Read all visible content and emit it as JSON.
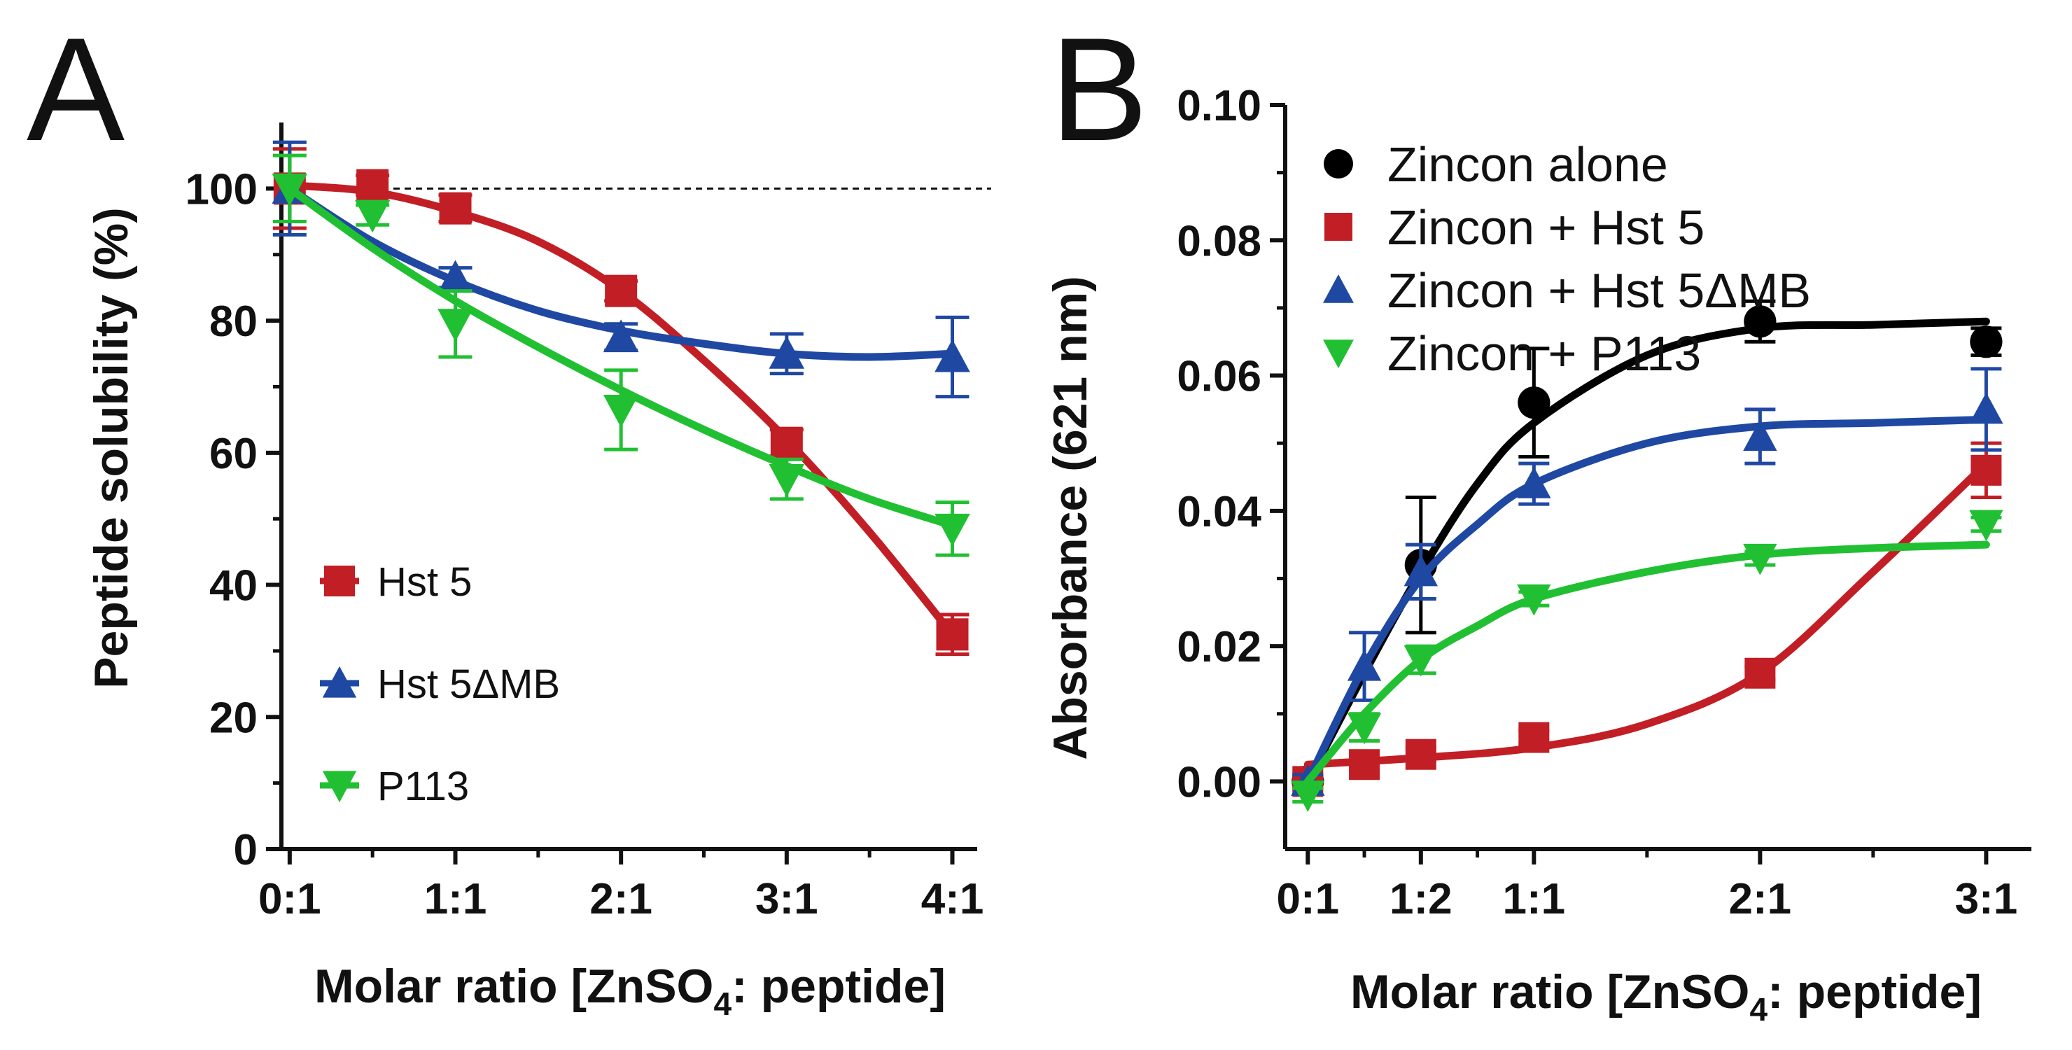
{
  "chart_data": [
    {
      "panel": "A",
      "type": "line",
      "xlabel_main": "Molar ratio [ZnSO",
      "xlabel_sub": "4",
      "xlabel_end": ": peptide]",
      "ylabel": "Peptide solubility (%)",
      "ylim": [
        0,
        110
      ],
      "xlim": [
        -0.05,
        4.15
      ],
      "yticks": [
        "0",
        "20",
        "40",
        "60",
        "80",
        "100"
      ],
      "xticks": [
        {
          "x": 0,
          "label": "0:1"
        },
        {
          "x": 1,
          "label": "1:1"
        },
        {
          "x": 2,
          "label": "2:1"
        },
        {
          "x": 3,
          "label": "3:1"
        },
        {
          "x": 4,
          "label": "4:1"
        }
      ],
      "reference_line": 100,
      "legend_position": "bottom-left",
      "series": [
        {
          "name": "Hst 5",
          "marker": "square",
          "color": "#c21e25",
          "x": [
            0,
            0.5,
            1,
            2,
            3,
            4
          ],
          "y": [
            100,
            100.5,
            97,
            84.5,
            61.5,
            32.5
          ],
          "err": [
            6,
            1.5,
            2,
            1.5,
            2,
            3
          ],
          "fit_x": [
            0,
            0.5,
            1,
            1.5,
            2,
            2.5,
            3,
            3.5,
            4
          ],
          "fit_y": [
            100.5,
            99.5,
            96.5,
            92,
            84.5,
            74,
            62,
            48,
            32.5
          ]
        },
        {
          "name": "Hst 5ΔMB",
          "marker": "triangle-up",
          "color": "#1f48a2",
          "x": [
            0,
            1,
            2,
            3,
            4
          ],
          "y": [
            100,
            86.5,
            77.5,
            75,
            74.5
          ],
          "err": [
            7,
            1.5,
            2,
            3,
            6
          ],
          "fit_x": [
            0,
            0.5,
            1,
            1.5,
            2,
            2.5,
            3,
            3.5,
            4
          ],
          "fit_y": [
            100,
            92,
            86,
            81.5,
            78.5,
            76.5,
            75,
            74.5,
            75
          ]
        },
        {
          "name": "P113",
          "marker": "triangle-down",
          "color": "#21c032",
          "x": [
            0,
            0.5,
            1,
            2,
            3,
            4
          ],
          "y": [
            100,
            96,
            79.5,
            66.5,
            56,
            48.5
          ],
          "err": [
            5,
            1.5,
            5,
            6,
            3,
            4
          ],
          "fit_x": [
            0,
            0.5,
            1,
            1.5,
            2,
            2.5,
            3,
            3.5,
            4
          ],
          "fit_y": [
            100,
            91,
            83,
            76,
            69.5,
            63.5,
            58,
            53,
            49
          ]
        }
      ]
    },
    {
      "panel": "B",
      "type": "line",
      "xlabel_main": "Molar ratio [ZnSO",
      "xlabel_sub": "4",
      "xlabel_end": ": peptide]",
      "ylabel": "Absorbance (621 nm)",
      "ylim": [
        -0.01,
        0.1
      ],
      "xlim": [
        -0.1,
        3.2
      ],
      "yticks": [
        "0.00",
        "0.02",
        "0.04",
        "0.06",
        "0.08",
        "0.10"
      ],
      "ytick_values": [
        0,
        0.02,
        0.04,
        0.06,
        0.08,
        0.1
      ],
      "xticks": [
        {
          "x": 0,
          "label": "0:1"
        },
        {
          "x": 0.5,
          "label": "1:2"
        },
        {
          "x": 1,
          "label": "1:1"
        },
        {
          "x": 2,
          "label": "2:1"
        },
        {
          "x": 3,
          "label": "3:1"
        }
      ],
      "legend_position": "top-left",
      "series": [
        {
          "name": "Zincon alone",
          "marker": "circle",
          "color": "#000000",
          "x": [
            0,
            0.5,
            1,
            2,
            3
          ],
          "y": [
            0,
            0.032,
            0.056,
            0.068,
            0.065
          ],
          "err": [
            0.001,
            0.01,
            0.008,
            0.003,
            0.002
          ],
          "fit_x": [
            0,
            0.25,
            0.5,
            0.75,
            1,
            1.5,
            2,
            2.5,
            3
          ],
          "fit_y": [
            0,
            0.016,
            0.031,
            0.044,
            0.053,
            0.063,
            0.067,
            0.0675,
            0.068
          ]
        },
        {
          "name": "Zincon + Hst 5",
          "marker": "square",
          "color": "#c21e25",
          "x": [
            0,
            0.25,
            0.5,
            1,
            2,
            3
          ],
          "y": [
            0,
            0.0025,
            0.004,
            0.0065,
            0.016,
            0.046
          ],
          "err": [
            0.0005,
            0.001,
            0.001,
            0.001,
            0.001,
            0.004
          ],
          "fit_x": [
            0,
            0.5,
            1,
            1.5,
            2,
            2.5,
            3
          ],
          "fit_y": [
            0.0025,
            0.0035,
            0.005,
            0.0085,
            0.016,
            0.031,
            0.047
          ]
        },
        {
          "name": "Zincon + Hst 5ΔMB",
          "marker": "triangle-up",
          "color": "#1f48a2",
          "x": [
            0,
            0.25,
            0.5,
            1,
            2,
            3
          ],
          "y": [
            0,
            0.017,
            0.031,
            0.044,
            0.051,
            0.055
          ],
          "err": [
            0.001,
            0.005,
            0.004,
            0.003,
            0.004,
            0.006
          ],
          "fit_x": [
            0,
            0.25,
            0.5,
            0.75,
            1,
            1.5,
            2,
            2.5,
            3
          ],
          "fit_y": [
            0,
            0.017,
            0.03,
            0.038,
            0.044,
            0.05,
            0.0525,
            0.053,
            0.0535
          ]
        },
        {
          "name": "Zincon + P113",
          "marker": "triangle-down",
          "color": "#21c032",
          "x": [
            0,
            0.25,
            0.5,
            1,
            2,
            3
          ],
          "y": [
            -0.002,
            0.008,
            0.018,
            0.027,
            0.033,
            0.038
          ],
          "err": [
            0.001,
            0.002,
            0.002,
            0.001,
            0.001,
            0.001
          ],
          "fit_x": [
            0,
            0.25,
            0.5,
            0.75,
            1,
            1.5,
            2,
            2.5,
            3
          ],
          "fit_y": [
            0,
            0.01,
            0.018,
            0.023,
            0.027,
            0.031,
            0.0335,
            0.0345,
            0.035
          ]
        }
      ]
    }
  ]
}
